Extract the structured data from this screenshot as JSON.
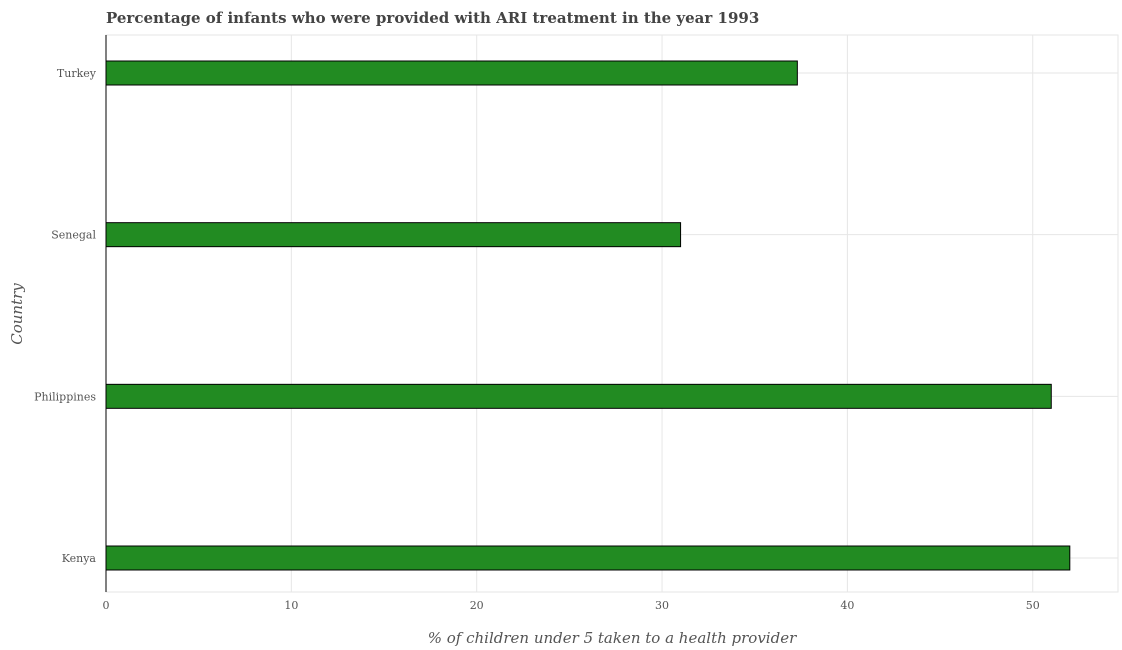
{
  "chart_data": {
    "type": "bar",
    "orientation": "horizontal",
    "title": "Percentage of infants who were provided with ARI treatment in the year 1993",
    "xlabel": "% of children under 5 taken to a health provider",
    "ylabel": "Country",
    "categories": [
      "Kenya",
      "Philippines",
      "Senegal",
      "Turkey"
    ],
    "series": [
      {
        "values": [
          52.0,
          51.0,
          31.0,
          37.3
        ]
      }
    ],
    "xlim": [
      0,
      54.6
    ],
    "xticks": [
      0,
      10,
      20,
      30,
      40,
      50
    ],
    "grid": true,
    "bar_color": "#228b22"
  }
}
